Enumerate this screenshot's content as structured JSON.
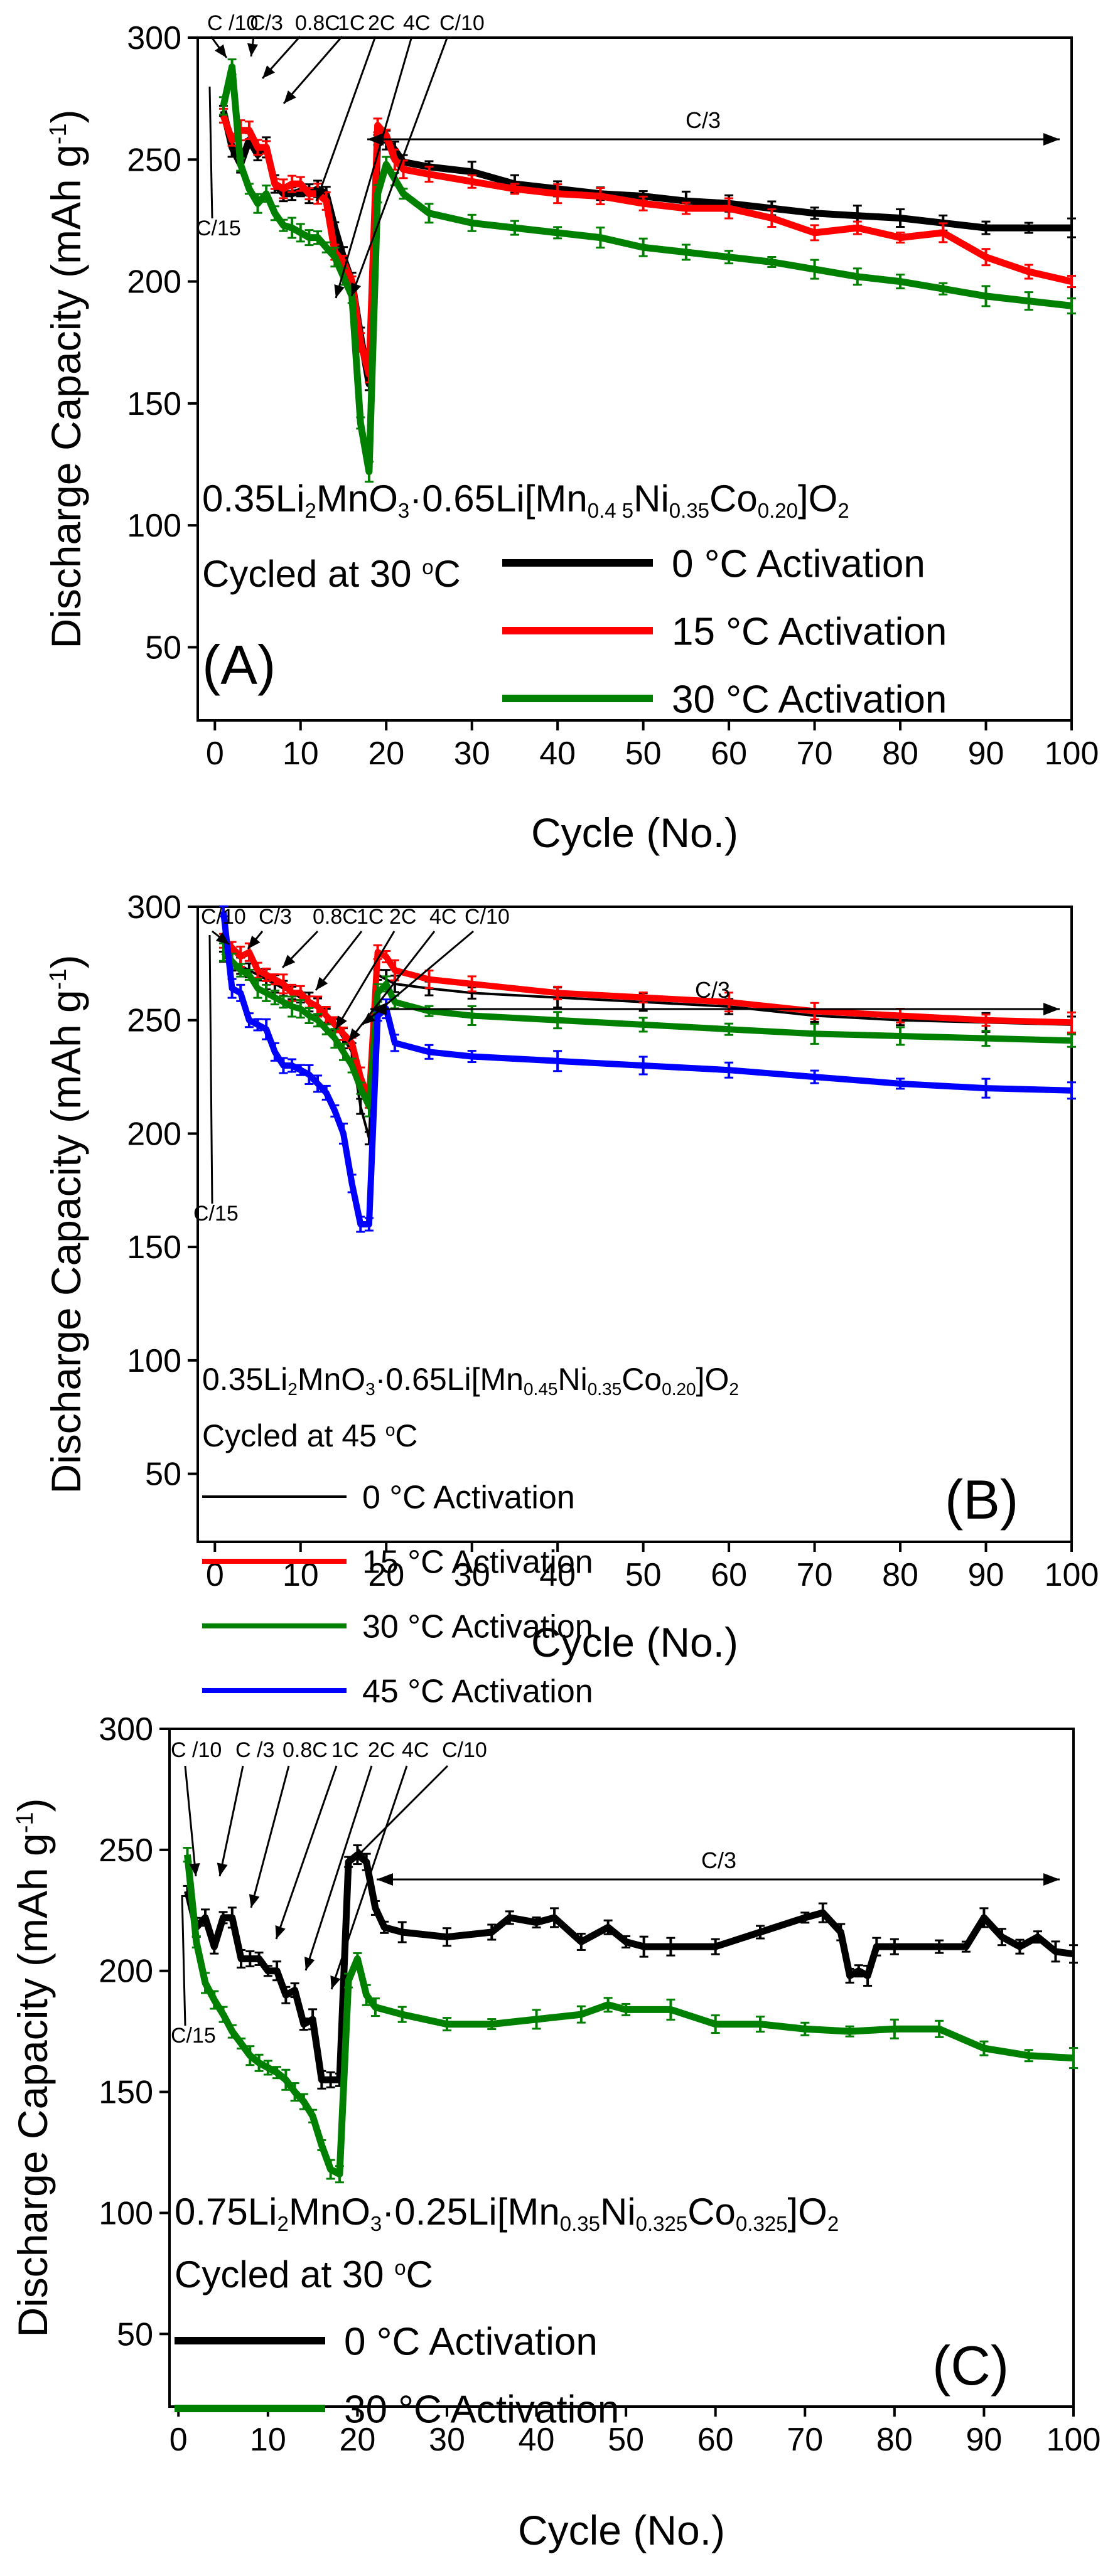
{
  "figure": {
    "panels_label": "Discharge capacity vs cycle number"
  },
  "chart_data": [
    {
      "type": "line",
      "panel": "(A)",
      "xlabel": "Cycle (No.)",
      "ylabel": "Discharge Capacity (mAh g",
      "ylabel_sup": "-1",
      "ylabel_end": ")",
      "xlim": [
        -2,
        100
      ],
      "ylim": [
        20,
        300
      ],
      "xticks": [
        0,
        10,
        20,
        30,
        40,
        50,
        60,
        70,
        80,
        90,
        100
      ],
      "yticks": [
        50,
        100,
        150,
        200,
        250,
        300
      ],
      "formula": [
        "0.35Li",
        "2",
        "MnO",
        "3",
        "·0.65Li[Mn",
        "0.4 5",
        "Ni",
        "0.35",
        "Co",
        "0.20",
        "]O",
        "2"
      ],
      "condition": [
        "Cycled at 30 ",
        "o",
        "C"
      ],
      "rate_labels": [
        "C /10",
        "C/3",
        "0.8C",
        "1C",
        "2C",
        "4C",
        "C/10"
      ],
      "c15_label": "C/15",
      "long_label": "C/3",
      "series": [
        {
          "name": "0 °C Activation",
          "color": "#000000",
          "x": [
            1,
            2,
            3,
            4,
            5,
            6,
            7,
            8,
            9,
            10,
            11,
            12,
            13,
            14,
            15,
            16,
            17,
            18,
            19,
            20,
            21,
            22,
            25,
            30,
            35,
            40,
            45,
            50,
            55,
            60,
            65,
            70,
            75,
            80,
            85,
            90,
            95,
            100
          ],
          "values": [
            270,
            255,
            248,
            258,
            252,
            255,
            240,
            236,
            236,
            237,
            236,
            238,
            236,
            222,
            210,
            200,
            178,
            158,
            258,
            258,
            254,
            249,
            247,
            245,
            240,
            238,
            236,
            235,
            233,
            232,
            230,
            228,
            227,
            226,
            224,
            222,
            222,
            222
          ]
        },
        {
          "name": "15 °C Activation",
          "color": "#ff0000",
          "x": [
            1,
            2,
            3,
            4,
            5,
            6,
            7,
            8,
            9,
            10,
            11,
            12,
            13,
            14,
            15,
            16,
            17,
            18,
            19,
            20,
            21,
            22,
            25,
            30,
            35,
            40,
            45,
            50,
            55,
            60,
            65,
            70,
            75,
            80,
            85,
            90,
            95,
            100
          ],
          "values": [
            268,
            258,
            262,
            262,
            255,
            255,
            240,
            238,
            240,
            240,
            236,
            236,
            233,
            212,
            208,
            200,
            175,
            162,
            264,
            260,
            250,
            246,
            244,
            241,
            238,
            236,
            235,
            232,
            230,
            230,
            226,
            220,
            222,
            218,
            220,
            210,
            204,
            200
          ]
        },
        {
          "name": "30 °C Activation",
          "color": "#008000",
          "x": [
            1,
            2,
            3,
            4,
            5,
            6,
            7,
            8,
            9,
            10,
            11,
            12,
            13,
            14,
            15,
            16,
            17,
            18,
            19,
            20,
            21,
            22,
            25,
            30,
            35,
            40,
            45,
            50,
            55,
            60,
            65,
            70,
            75,
            80,
            85,
            90,
            95,
            100
          ],
          "values": [
            272,
            288,
            248,
            238,
            232,
            236,
            228,
            223,
            222,
            220,
            218,
            218,
            214,
            210,
            202,
            194,
            142,
            122,
            236,
            248,
            242,
            236,
            228,
            224,
            222,
            220,
            218,
            214,
            212,
            210,
            208,
            205,
            202,
            200,
            197,
            194,
            192,
            190
          ]
        }
      ]
    },
    {
      "type": "line",
      "panel": "(B)",
      "xlabel": "Cycle (No.)",
      "ylabel": "Discharge Capacity (mAh g",
      "ylabel_sup": "-1",
      "ylabel_end": ")",
      "xlim": [
        -2,
        100
      ],
      "ylim": [
        20,
        300
      ],
      "xticks": [
        0,
        10,
        20,
        30,
        40,
        50,
        60,
        70,
        80,
        90,
        100
      ],
      "yticks": [
        50,
        100,
        150,
        200,
        250,
        300
      ],
      "formula": [
        "0.35Li",
        "2",
        "MnO",
        "3",
        "·0.65Li[Mn",
        "0.45",
        "Ni",
        "0.35",
        "Co",
        "0.20",
        "]O",
        "2"
      ],
      "condition": [
        "Cycled at 45 ",
        "o",
        "C"
      ],
      "rate_labels": [
        "C/10",
        "C/3",
        "0.8C",
        "1C",
        "2C",
        "4C",
        "C/10"
      ],
      "c15_label": "C/15",
      "long_label": "C/3",
      "series": [
        {
          "name": "0 °C Activation",
          "color": "#000000",
          "x": [
            1,
            2,
            3,
            4,
            5,
            6,
            7,
            8,
            9,
            10,
            11,
            12,
            13,
            14,
            15,
            16,
            17,
            18,
            19,
            20,
            21,
            25,
            30,
            40,
            50,
            60,
            70,
            80,
            90,
            100
          ],
          "values": [
            278,
            276,
            274,
            272,
            270,
            268,
            266,
            264,
            262,
            260,
            258,
            256,
            252,
            248,
            242,
            236,
            212,
            198,
            270,
            268,
            266,
            264,
            262,
            260,
            258,
            256,
            252,
            250,
            249,
            248
          ]
        },
        {
          "name": "15 °C Activation",
          "color": "#ff0000",
          "x": [
            1,
            2,
            3,
            4,
            5,
            6,
            7,
            8,
            9,
            10,
            11,
            12,
            13,
            14,
            15,
            16,
            17,
            18,
            19,
            20,
            21,
            25,
            30,
            40,
            50,
            60,
            70,
            80,
            90,
            100
          ],
          "values": [
            285,
            282,
            278,
            280,
            272,
            270,
            268,
            266,
            262,
            262,
            258,
            256,
            252,
            248,
            244,
            240,
            225,
            215,
            280,
            278,
            272,
            268,
            266,
            262,
            260,
            258,
            254,
            252,
            250,
            249
          ]
        },
        {
          "name": "30 °C Activation",
          "color": "#008000",
          "x": [
            1,
            2,
            3,
            4,
            5,
            6,
            7,
            8,
            9,
            10,
            11,
            12,
            13,
            14,
            15,
            16,
            17,
            18,
            19,
            20,
            21,
            25,
            30,
            40,
            50,
            60,
            70,
            80,
            90,
            100
          ],
          "values": [
            280,
            276,
            272,
            270,
            264,
            262,
            260,
            258,
            256,
            255,
            252,
            250,
            246,
            242,
            236,
            230,
            220,
            212,
            262,
            266,
            258,
            254,
            252,
            250,
            248,
            246,
            244,
            243,
            242,
            241
          ]
        },
        {
          "name": "45 °C Activation",
          "color": "#0000ff",
          "x": [
            1,
            2,
            3,
            4,
            5,
            6,
            7,
            8,
            9,
            10,
            11,
            12,
            13,
            14,
            15,
            16,
            17,
            18,
            19,
            20,
            21,
            25,
            30,
            40,
            50,
            60,
            70,
            80,
            90,
            100
          ],
          "values": [
            298,
            264,
            262,
            250,
            248,
            246,
            236,
            230,
            230,
            228,
            226,
            222,
            218,
            210,
            200,
            178,
            160,
            160,
            252,
            255,
            240,
            236,
            234,
            232,
            230,
            228,
            225,
            222,
            220,
            219
          ]
        }
      ]
    },
    {
      "type": "line",
      "panel": "(C)",
      "xlabel": "Cycle (No.)",
      "ylabel": "Discharge Capacity (mAh g",
      "ylabel_sup": "-1",
      "ylabel_end": ")",
      "xlim": [
        -1,
        100
      ],
      "ylim": [
        20,
        300
      ],
      "xticks": [
        0,
        10,
        20,
        30,
        40,
        50,
        60,
        70,
        80,
        90,
        100
      ],
      "yticks": [
        50,
        100,
        150,
        200,
        250,
        300
      ],
      "formula": [
        "0.75Li",
        "2",
        "MnO",
        "3",
        "·0.25Li[Mn",
        "0.35",
        "Ni",
        "0.325",
        "Co",
        "0.325",
        "]O",
        "2"
      ],
      "condition": [
        "Cycled at 30 ",
        "o",
        "C"
      ],
      "rate_labels": [
        "C /10",
        "C /3",
        "0.8C",
        "1C",
        "2C",
        "4C",
        "C/10"
      ],
      "c15_label": "C/15",
      "long_label": "C/3",
      "series": [
        {
          "name": "0 °C Activation",
          "color": "#000000",
          "x": [
            1,
            2,
            3,
            4,
            5,
            6,
            7,
            8,
            9,
            10,
            11,
            12,
            13,
            14,
            15,
            16,
            17,
            18,
            19,
            20,
            21,
            22,
            23,
            25,
            30,
            35,
            37,
            40,
            42,
            45,
            48,
            50,
            52,
            55,
            60,
            65,
            70,
            72,
            74,
            75,
            76,
            77,
            78,
            80,
            85,
            88,
            90,
            92,
            94,
            96,
            98,
            100
          ],
          "values": [
            233,
            218,
            222,
            210,
            222,
            222,
            205,
            205,
            205,
            200,
            200,
            190,
            192,
            178,
            180,
            155,
            155,
            155,
            245,
            248,
            245,
            226,
            218,
            216,
            214,
            216,
            222,
            220,
            222,
            212,
            218,
            212,
            210,
            210,
            210,
            216,
            222,
            224,
            216,
            198,
            200,
            198,
            210,
            210,
            210,
            210,
            222,
            214,
            210,
            214,
            208,
            207
          ]
        },
        {
          "name": "30 °C Activation",
          "color": "#008000",
          "x": [
            1,
            2,
            3,
            4,
            5,
            6,
            7,
            8,
            9,
            10,
            11,
            12,
            13,
            14,
            15,
            16,
            17,
            18,
            19,
            20,
            21,
            22,
            25,
            30,
            35,
            40,
            45,
            48,
            50,
            55,
            60,
            65,
            70,
            75,
            80,
            85,
            90,
            95,
            100
          ],
          "values": [
            248,
            212,
            195,
            188,
            182,
            175,
            170,
            165,
            162,
            160,
            158,
            155,
            150,
            146,
            140,
            128,
            118,
            116,
            196,
            205,
            190,
            185,
            182,
            178,
            178,
            180,
            182,
            186,
            184,
            184,
            178,
            178,
            176,
            175,
            176,
            176,
            168,
            165,
            164
          ]
        }
      ]
    }
  ]
}
